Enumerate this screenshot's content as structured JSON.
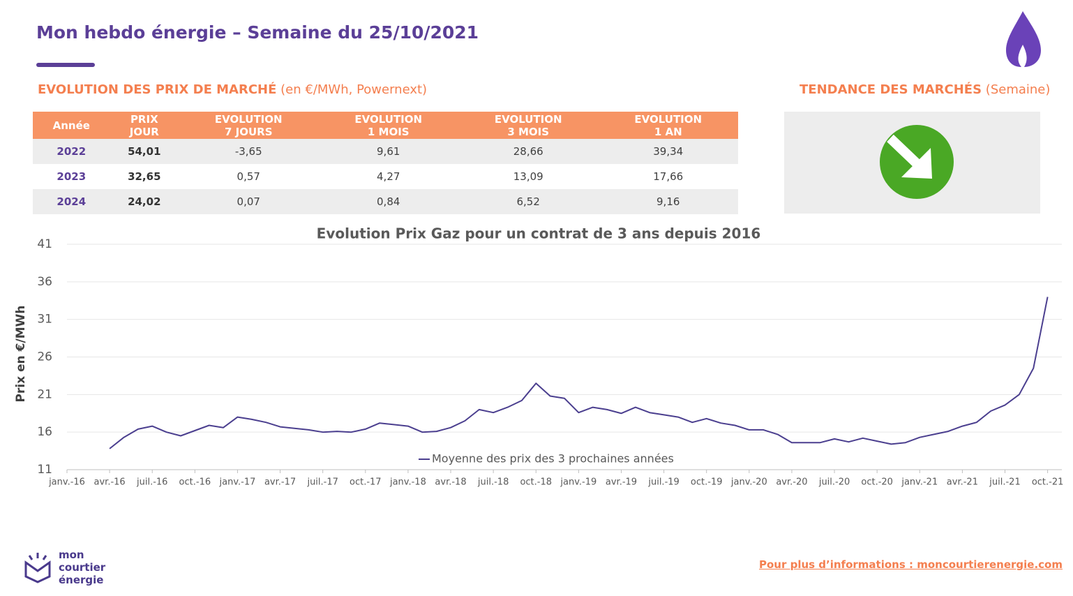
{
  "header": {
    "title": "Mon hebdo énergie – Semaine du 25/10/2021"
  },
  "market": {
    "title": "EVOLUTION DES PRIX DE MARCHÉ",
    "subtitle": "(en €/MWh, Powernext)",
    "table": {
      "columns": [
        [
          "Année"
        ],
        [
          "PRIX",
          "JOUR"
        ],
        [
          "EVOLUTION",
          "7 JOURS"
        ],
        [
          "EVOLUTION",
          "1 MOIS"
        ],
        [
          "EVOLUTION",
          "3 MOIS"
        ],
        [
          "EVOLUTION",
          "1 AN"
        ]
      ],
      "rows": [
        [
          "2022",
          "54,01",
          "-3,65",
          "9,61",
          "28,66",
          "39,34"
        ],
        [
          "2023",
          "32,65",
          "0,57",
          "4,27",
          "13,09",
          "17,66"
        ],
        [
          "2024",
          "24,02",
          "0,07",
          "0,84",
          "6,52",
          "9,16"
        ]
      ]
    }
  },
  "trend": {
    "title": "TENDANCE DES MARCHÉS",
    "subtitle": "(Semaine)"
  },
  "chart_data": {
    "type": "line",
    "title": "Evolution Prix Gaz pour un contrat de 3 ans depuis 2016",
    "y_label": "Prix en €/MWh",
    "x": [
      "2016-04",
      "2016-05",
      "2016-06",
      "2016-07",
      "2016-08",
      "2016-09",
      "2016-10",
      "2016-11",
      "2016-12",
      "2017-01",
      "2017-02",
      "2017-03",
      "2017-04",
      "2017-05",
      "2017-06",
      "2017-07",
      "2017-08",
      "2017-09",
      "2017-10",
      "2017-11",
      "2017-12",
      "2018-01",
      "2018-02",
      "2018-03",
      "2018-04",
      "2018-05",
      "2018-06",
      "2018-07",
      "2018-08",
      "2018-09",
      "2018-10",
      "2018-11",
      "2018-12",
      "2019-01",
      "2019-02",
      "2019-03",
      "2019-04",
      "2019-05",
      "2019-06",
      "2019-07",
      "2019-08",
      "2019-09",
      "2019-10",
      "2019-11",
      "2019-12",
      "2020-01",
      "2020-02",
      "2020-03",
      "2020-04",
      "2020-05",
      "2020-06",
      "2020-07",
      "2020-08",
      "2020-09",
      "2020-10",
      "2020-11",
      "2020-12",
      "2021-01",
      "2021-02",
      "2021-03",
      "2021-04",
      "2021-05",
      "2021-06",
      "2021-07",
      "2021-08",
      "2021-09",
      "2021-10"
    ],
    "series": [
      {
        "name": "Moyenne des prix des 3 prochaines années",
        "color": "#4b3f8f",
        "values": [
          13.8,
          15.3,
          16.4,
          16.8,
          16.0,
          15.5,
          16.2,
          16.9,
          16.6,
          18.0,
          17.7,
          17.3,
          16.7,
          16.5,
          16.3,
          16.0,
          16.1,
          16.0,
          16.4,
          17.2,
          17.0,
          16.8,
          16.0,
          16.1,
          16.6,
          17.5,
          19.0,
          18.6,
          19.3,
          20.2,
          22.5,
          20.8,
          20.5,
          18.6,
          19.3,
          19.0,
          18.5,
          19.3,
          18.6,
          18.3,
          18.0,
          17.3,
          17.8,
          17.2,
          16.9,
          16.3,
          16.3,
          15.7,
          14.6,
          14.6,
          14.6,
          15.1,
          14.7,
          15.2,
          14.8,
          14.4,
          14.6,
          15.3,
          15.7,
          16.1,
          16.8,
          17.3,
          18.8,
          19.6,
          21.0,
          24.5,
          34.0
        ]
      }
    ],
    "xlim": [
      "2016-01",
      "2021-11"
    ],
    "xticks": [
      {
        "value": "2016-01",
        "label": "janv.-16"
      },
      {
        "value": "2016-04",
        "label": "avr.-16"
      },
      {
        "value": "2016-07",
        "label": "juil.-16"
      },
      {
        "value": "2016-10",
        "label": "oct.-16"
      },
      {
        "value": "2017-01",
        "label": "janv.-17"
      },
      {
        "value": "2017-04",
        "label": "avr.-17"
      },
      {
        "value": "2017-07",
        "label": "juil.-17"
      },
      {
        "value": "2017-10",
        "label": "oct.-17"
      },
      {
        "value": "2018-01",
        "label": "janv.-18"
      },
      {
        "value": "2018-04",
        "label": "avr.-18"
      },
      {
        "value": "2018-07",
        "label": "juil.-18"
      },
      {
        "value": "2018-10",
        "label": "oct.-18"
      },
      {
        "value": "2019-01",
        "label": "janv.-19"
      },
      {
        "value": "2019-04",
        "label": "avr.-19"
      },
      {
        "value": "2019-07",
        "label": "juil.-19"
      },
      {
        "value": "2019-10",
        "label": "oct.-19"
      },
      {
        "value": "2020-01",
        "label": "janv.-20"
      },
      {
        "value": "2020-04",
        "label": "avr.-20"
      },
      {
        "value": "2020-07",
        "label": "juil.-20"
      },
      {
        "value": "2020-10",
        "label": "oct.-20"
      },
      {
        "value": "2021-01",
        "label": "janv.-21"
      },
      {
        "value": "2021-04",
        "label": "avr.-21"
      },
      {
        "value": "2021-07",
        "label": "juil.-21"
      },
      {
        "value": "2021-10",
        "label": "oct.-21"
      }
    ],
    "ylim": [
      11,
      41
    ],
    "yticks": [
      11,
      16,
      21,
      26,
      31,
      36,
      41
    ],
    "grid": true
  },
  "footer": {
    "logo": [
      "mon",
      "courtier",
      "énergie"
    ],
    "link": "Pour plus d’informations : moncourtierenergie.com"
  }
}
